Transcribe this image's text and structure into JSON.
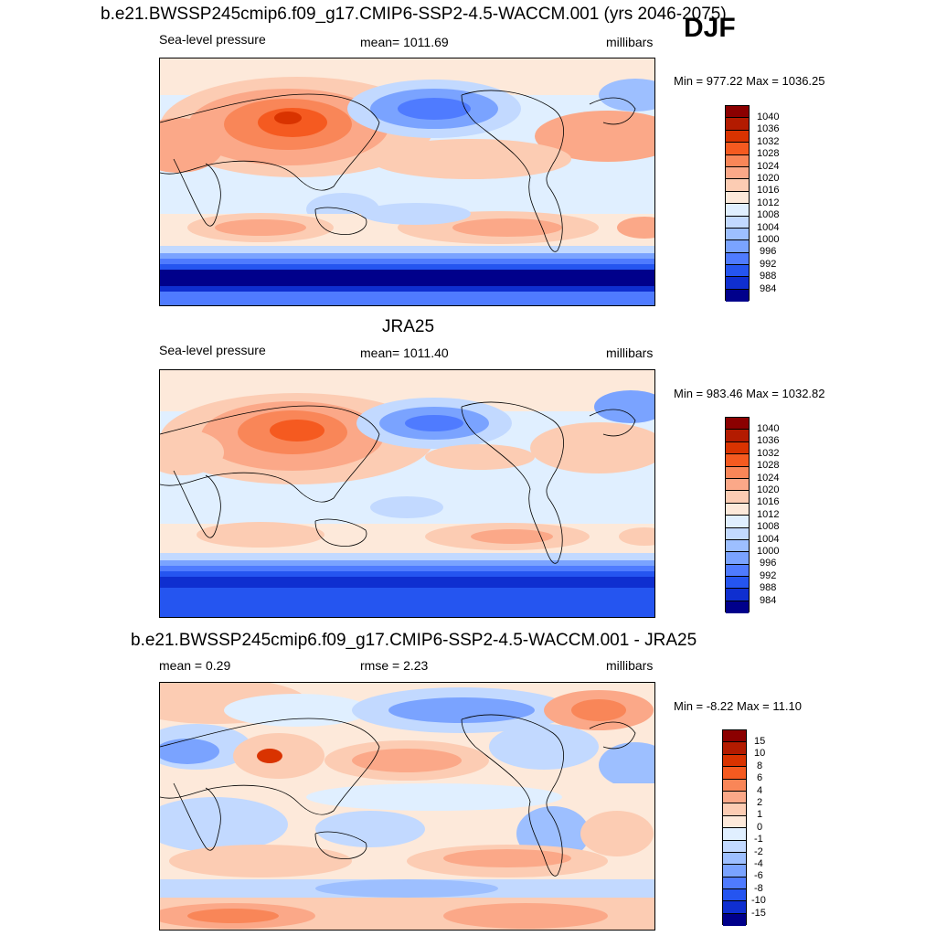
{
  "domain_note": "",
  "season": "DJF",
  "panels": [
    {
      "title": "b.e21.BWSSP245cmip6.f09_g17.CMIP6-SSP2-4.5-WACCM.001 (yrs 2046-2075)",
      "left_label": "Sea-level pressure",
      "center_label": "mean= 1011.69",
      "right_label": "millibars",
      "minmax": "Min = 977.22 Max = 1036.25"
    },
    {
      "title": "JRA25",
      "left_label": "Sea-level pressure",
      "center_label": "mean= 1011.40",
      "right_label": "millibars",
      "minmax": "Min = 983.46 Max = 1032.82"
    },
    {
      "title": "b.e21.BWSSP245cmip6.f09_g17.CMIP6-SSP2-4.5-WACCM.001 - JRA25",
      "left_label": "mean =   0.29",
      "center_label": "rmse =   2.23",
      "right_label": "millibars",
      "minmax": "Min =  -8.22 Max =  11.10"
    }
  ],
  "colorbars": {
    "slp": {
      "labels": [
        "1040",
        "1036",
        "1032",
        "1028",
        "1024",
        "1020",
        "1016",
        "1012",
        "1008",
        "1004",
        "1000",
        "996",
        "992",
        "988",
        "984"
      ],
      "colors": [
        "#8b0000",
        "#b31b00",
        "#d93300",
        "#f55a20",
        "#f98658",
        "#fba888",
        "#fcccb3",
        "#fde9da",
        "#e0efff",
        "#c2d9ff",
        "#9dbfff",
        "#7aa3ff",
        "#4f7bff",
        "#2555f0",
        "#0f2fd0",
        "#00008b"
      ]
    },
    "diff": {
      "labels": [
        "15",
        "10",
        "8",
        "6",
        "4",
        "2",
        "1",
        "0",
        "-1",
        "-2",
        "-4",
        "-6",
        "-8",
        "-10",
        "-15"
      ],
      "colors": [
        "#8b0000",
        "#b31b00",
        "#d93300",
        "#f55a20",
        "#f98658",
        "#fba888",
        "#fcccb3",
        "#fde9da",
        "#e0efff",
        "#c2d9ff",
        "#9dbfff",
        "#7aa3ff",
        "#4f7bff",
        "#2555f0",
        "#0f2fd0",
        "#00008b"
      ]
    }
  },
  "chart_data": [
    {
      "type": "heatmap",
      "title": "b.e21.BWSSP245cmip6.f09_g17.CMIP6-SSP2-4.5-WACCM.001 (yrs 2046-2075)",
      "variable": "Sea-level pressure",
      "units": "millibars",
      "mean": 1011.69,
      "min": 977.22,
      "max": 1036.25,
      "contour_levels": [
        984,
        988,
        992,
        996,
        1000,
        1004,
        1008,
        1012,
        1016,
        1020,
        1024,
        1028,
        1032,
        1036,
        1040
      ]
    },
    {
      "type": "heatmap",
      "title": "JRA25",
      "variable": "Sea-level pressure",
      "units": "millibars",
      "mean": 1011.4,
      "min": 983.46,
      "max": 1032.82,
      "contour_levels": [
        984,
        988,
        992,
        996,
        1000,
        1004,
        1008,
        1012,
        1016,
        1020,
        1024,
        1028,
        1032,
        1036,
        1040
      ]
    },
    {
      "type": "heatmap",
      "title": "b.e21.BWSSP245cmip6.f09_g17.CMIP6-SSP2-4.5-WACCM.001 - JRA25",
      "units": "millibars",
      "mean": 0.29,
      "rmse": 2.23,
      "min": -8.22,
      "max": 11.1,
      "contour_levels": [
        -15,
        -10,
        -8,
        -6,
        -4,
        -2,
        -1,
        0,
        1,
        2,
        4,
        6,
        8,
        10,
        15
      ]
    }
  ]
}
